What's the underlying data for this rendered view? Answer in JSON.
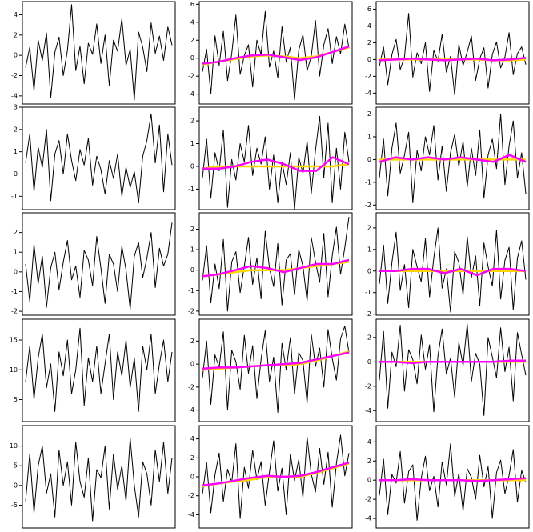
{
  "chart_data": [
    {
      "type": "line",
      "ylim": [
        -4.8,
        5.3
      ],
      "yticks": [
        -4,
        -2,
        0,
        2,
        4
      ],
      "series": [
        {
          "color": "#000000",
          "values": [
            -1.2,
            0.8,
            -3.5,
            1.5,
            -0.5,
            2.2,
            -4.2,
            0.3,
            1.8,
            -2.0,
            0.5,
            5.0,
            -1.5,
            0.9,
            -2.8,
            1.2,
            0.1,
            3.1,
            -0.8,
            2.0,
            -3.0,
            1.5,
            0.4,
            3.6,
            -1.0,
            0.6,
            -4.4,
            2.3,
            0.8,
            -1.6,
            3.2,
            0.2,
            1.9,
            -0.5,
            2.8,
            1.0
          ]
        }
      ]
    },
    {
      "type": "line",
      "ylim": [
        -5.1,
        6.3
      ],
      "yticks": [
        -4,
        -2,
        0,
        2,
        4,
        6
      ],
      "series": [
        {
          "color": "#000000",
          "values": [
            -1.5,
            1.0,
            -4.0,
            2.5,
            -0.8,
            3.0,
            -2.5,
            0.5,
            4.8,
            -1.8,
            0.3,
            1.5,
            -3.2,
            2.0,
            0.4,
            5.2,
            -1.0,
            0.8,
            -2.2,
            3.5,
            -0.4,
            1.2,
            -4.6,
            0.9,
            2.6,
            -1.4,
            0.2,
            4.2,
            -2.0,
            1.5,
            3.3,
            -0.6,
            2.4,
            0.5,
            3.8,
            1.1
          ]
        },
        {
          "color": "#ffd700",
          "values": [
            -0.7,
            -0.4,
            -0.1,
            0.2,
            0.3,
            0.2,
            0.0,
            0.2,
            0.7,
            1.2
          ]
        },
        {
          "color": "#ff00ff",
          "values": [
            -0.6,
            -0.4,
            0.0,
            0.3,
            0.4,
            0.1,
            -0.2,
            0.1,
            0.7,
            1.3
          ]
        }
      ]
    },
    {
      "type": "line",
      "ylim": [
        -5.3,
        6.9
      ],
      "yticks": [
        -4,
        -2,
        0,
        2,
        4,
        6
      ],
      "series": [
        {
          "color": "#000000",
          "values": [
            -0.8,
            1.5,
            -3.0,
            0.6,
            2.4,
            -1.2,
            0.3,
            5.5,
            -2.1,
            0.8,
            -0.5,
            2.0,
            -3.8,
            1.1,
            -0.2,
            3.0,
            -1.5,
            0.4,
            -4.2,
            1.8,
            -0.7,
            0.9,
            2.8,
            -2.5,
            0.1,
            1.4,
            -3.4,
            0.6,
            2.1,
            -1.0,
            0.3,
            3.2,
            -1.8,
            0.7,
            1.5,
            -0.6
          ]
        },
        {
          "color": "#ffd700",
          "values": [
            0,
            0,
            0,
            0,
            0,
            0,
            0,
            -0.1,
            -0.1,
            0
          ]
        },
        {
          "color": "#ff00ff",
          "values": [
            -0.1,
            0,
            0.1,
            0,
            -0.1,
            0,
            0.1,
            -0.1,
            0,
            0.2
          ]
        }
      ]
    },
    {
      "type": "line",
      "ylim": [
        -1.6,
        3.0
      ],
      "yticks": [
        -1,
        0,
        1,
        2,
        3
      ],
      "series": [
        {
          "color": "#000000",
          "values": [
            0.5,
            1.8,
            -0.8,
            1.2,
            0.3,
            2.0,
            -1.2,
            0.9,
            1.5,
            0.0,
            1.8,
            0.6,
            -0.3,
            1.1,
            0.4,
            1.6,
            -0.5,
            0.8,
            0.2,
            -0.9,
            0.6,
            -0.2,
            0.9,
            -1.0,
            0.3,
            -0.6,
            0.1,
            -1.3,
            0.8,
            1.5,
            2.7,
            0.5,
            2.2,
            -0.8,
            1.8,
            0.4
          ]
        }
      ]
    },
    {
      "type": "line",
      "ylim": [
        -1.9,
        2.6
      ],
      "yticks": [
        -1,
        0,
        1,
        2
      ],
      "series": [
        {
          "color": "#000000",
          "values": [
            -0.5,
            1.2,
            -1.4,
            0.6,
            -0.2,
            1.6,
            -1.8,
            0.3,
            -0.6,
            1.0,
            0.2,
            1.8,
            -0.4,
            0.8,
            0.1,
            1.3,
            -1.0,
            0.5,
            -1.6,
            0.2,
            -0.8,
            0.6,
            -1.9,
            0.4,
            -0.3,
            1.1,
            -1.2,
            0.7,
            2.2,
            -0.5,
            1.9,
            -1.6,
            0.8,
            -1.0,
            1.5,
            0.2
          ]
        },
        {
          "color": "#ffd700",
          "values": [
            -0.1,
            0,
            0,
            0,
            0,
            0,
            0,
            0,
            0,
            0.1
          ]
        },
        {
          "color": "#ff00ff",
          "values": [
            -0.1,
            -0.1,
            0,
            0.2,
            0.3,
            0.1,
            -0.2,
            -0.2,
            0.4,
            0.1
          ]
        }
      ]
    },
    {
      "type": "line",
      "ylim": [
        -2.2,
        2.3
      ],
      "yticks": [
        -2,
        -1,
        0,
        1,
        2
      ],
      "series": [
        {
          "color": "#000000",
          "values": [
            -0.8,
            0.9,
            -1.6,
            0.5,
            1.6,
            -0.6,
            0.2,
            1.2,
            -1.9,
            0.4,
            -0.5,
            1.0,
            0.2,
            1.5,
            -0.9,
            0.6,
            -1.4,
            0.3,
            1.1,
            -0.3,
            0.8,
            -1.2,
            0.5,
            -0.7,
            1.3,
            -1.7,
            0.2,
            0.9,
            -0.4,
            2.0,
            -1.1,
            0.6,
            1.7,
            -0.8,
            0.3,
            -1.5
          ]
        },
        {
          "color": "#ffd700",
          "values": [
            0,
            0,
            0,
            0,
            0,
            0,
            0,
            0,
            0,
            0
          ]
        },
        {
          "color": "#ff00ff",
          "values": [
            -0.1,
            0.1,
            0,
            0.1,
            0,
            0.1,
            0,
            -0.1,
            0.2,
            -0.1
          ]
        }
      ]
    },
    {
      "type": "line",
      "ylim": [
        -2.2,
        3.0
      ],
      "yticks": [
        -2,
        -1,
        0,
        1,
        2
      ],
      "series": [
        {
          "color": "#000000",
          "values": [
            0.4,
            -1.5,
            1.4,
            -0.6,
            0.8,
            -1.8,
            0.2,
            1.0,
            -0.9,
            0.5,
            1.6,
            -0.4,
            0.3,
            -1.3,
            1.1,
            0.6,
            -0.7,
            1.8,
            0.2,
            -1.6,
            0.9,
            0.4,
            -1.0,
            1.3,
            0.1,
            -1.9,
            0.8,
            1.5,
            -0.3,
            0.7,
            2.0,
            -0.8,
            1.2,
            0.3,
            0.9,
            2.5
          ]
        }
      ]
    },
    {
      "type": "line",
      "ylim": [
        -2.2,
        2.8
      ],
      "yticks": [
        -2,
        -1,
        0,
        1,
        2
      ],
      "series": [
        {
          "color": "#000000",
          "values": [
            -0.5,
            1.2,
            -1.6,
            0.3,
            -0.9,
            1.5,
            -2.0,
            0.4,
            0.9,
            -1.1,
            0.2,
            1.6,
            -0.7,
            0.6,
            -1.4,
            1.9,
            0.1,
            -0.8,
            1.3,
            -1.7,
            0.5,
            0.8,
            -1.2,
            1.0,
            0.2,
            -1.5,
            1.6,
            0.4,
            -0.6,
            1.8,
            -1.3,
            0.7,
            2.1,
            -0.2,
            1.1,
            2.6
          ]
        },
        {
          "color": "#ffd700",
          "values": [
            -0.3,
            -0.2,
            -0.1,
            0,
            0,
            0,
            0.1,
            0.2,
            0.3,
            0.4
          ]
        },
        {
          "color": "#ff00ff",
          "values": [
            -0.3,
            -0.2,
            0,
            0.2,
            0.1,
            -0.1,
            0.1,
            0.3,
            0.3,
            0.5
          ]
        }
      ]
    },
    {
      "type": "line",
      "ylim": [
        -2.05,
        2.7
      ],
      "yticks": [
        -2,
        -1,
        0,
        1,
        2
      ],
      "series": [
        {
          "color": "#000000",
          "values": [
            -0.6,
            1.2,
            -1.5,
            0.4,
            1.8,
            -0.9,
            0.3,
            -1.7,
            1.0,
            0.2,
            -0.5,
            1.5,
            -1.2,
            0.6,
            2.0,
            -0.8,
            0.1,
            -1.9,
            0.9,
            0.4,
            -1.1,
            1.6,
            -0.3,
            0.7,
            -1.6,
            1.3,
            0.2,
            -0.7,
            1.9,
            -1.3,
            0.5,
            1.1,
            -1.8,
            0.6,
            1.4,
            -0.4
          ]
        },
        {
          "color": "#ffd700",
          "values": [
            0,
            0,
            0,
            0,
            0,
            0,
            0,
            0,
            0,
            0
          ]
        },
        {
          "color": "#ff00ff",
          "values": [
            0,
            0,
            0.1,
            0.1,
            -0.1,
            0.1,
            -0.2,
            0.1,
            0.1,
            0
          ]
        }
      ]
    },
    {
      "type": "line",
      "ylim": [
        1.3,
        18.5
      ],
      "yticks": [
        5,
        10,
        15
      ],
      "series": [
        {
          "color": "#000000",
          "values": [
            8,
            14,
            5,
            12,
            16,
            7,
            11,
            3,
            13,
            9,
            15,
            6,
            10,
            17,
            4,
            12,
            8,
            14,
            6,
            11,
            16,
            5,
            13,
            9,
            15,
            7,
            12,
            3,
            14,
            10,
            16,
            6,
            11,
            15,
            8,
            13
          ]
        }
      ]
    },
    {
      "type": "line",
      "ylim": [
        -5.0,
        3.9
      ],
      "yticks": [
        -4,
        -2,
        0,
        2
      ],
      "series": [
        {
          "color": "#000000",
          "values": [
            -1.2,
            2.0,
            -3.5,
            0.8,
            -0.3,
            2.8,
            -4.0,
            1.2,
            0.2,
            -2.2,
            2.5,
            -0.8,
            1.6,
            -3.0,
            0.4,
            2.9,
            -1.5,
            0.6,
            -4.2,
            1.8,
            -0.5,
            2.3,
            -2.6,
            1.0,
            0.3,
            -3.4,
            2.6,
            -0.2,
            1.4,
            -2.0,
            3.0,
            0.5,
            -1.4,
            2.2,
            3.3,
            1.0
          ]
        },
        {
          "color": "#ffd700",
          "values": [
            -0.5,
            -0.4,
            -0.3,
            -0.2,
            -0.1,
            -0.1,
            0,
            0.3,
            0.7,
            1.1
          ]
        },
        {
          "color": "#ff00ff",
          "values": [
            -0.4,
            -0.3,
            -0.3,
            -0.2,
            -0.1,
            0,
            0.1,
            0.4,
            0.7,
            1.0
          ]
        }
      ]
    },
    {
      "type": "line",
      "ylim": [
        -4.9,
        3.5
      ],
      "yticks": [
        -4,
        -2,
        0,
        2
      ],
      "series": [
        {
          "color": "#000000",
          "values": [
            -1.5,
            2.5,
            -3.8,
            0.8,
            -0.4,
            3.0,
            -2.4,
            1.0,
            0.2,
            -1.8,
            2.2,
            -0.6,
            1.4,
            -4.1,
            0.5,
            2.7,
            -1.0,
            0.3,
            -2.9,
            1.6,
            -0.3,
            3.1,
            -1.6,
            0.7,
            -0.2,
            -4.4,
            2.0,
            0.4,
            -1.3,
            2.8,
            -0.8,
            1.2,
            -3.2,
            2.4,
            0.6,
            -1.1
          ]
        },
        {
          "color": "#ffd700",
          "values": [
            0,
            0,
            0,
            0,
            0,
            0,
            0,
            0,
            0,
            0
          ]
        },
        {
          "color": "#ff00ff",
          "values": [
            0,
            0,
            -0.1,
            0,
            0,
            0,
            0,
            0,
            0.1,
            0.1
          ]
        }
      ]
    },
    {
      "type": "line",
      "ylim": [
        -10.8,
        15.2
      ],
      "yticks": [
        -5,
        0,
        5,
        10
      ],
      "series": [
        {
          "color": "#000000",
          "values": [
            -4,
            8,
            -7,
            5,
            10,
            -2,
            3,
            -8,
            9,
            0,
            6,
            -5,
            11,
            1,
            -3,
            7,
            -9,
            4,
            2,
            10,
            -6,
            8,
            -1,
            5,
            -4,
            12,
            0,
            -8,
            6,
            3,
            -5,
            9,
            1,
            11,
            -2,
            7
          ]
        }
      ]
    },
    {
      "type": "line",
      "ylim": [
        -5.4,
        5.4
      ],
      "yticks": [
        -4,
        -2,
        0,
        2,
        4
      ],
      "series": [
        {
          "color": "#000000",
          "values": [
            -1.8,
            1.5,
            -3.8,
            0.2,
            2.5,
            -2.6,
            0.8,
            -0.6,
            3.5,
            -4.4,
            1.0,
            -1.2,
            2.8,
            -0.3,
            1.6,
            -3.0,
            0.5,
            3.8,
            -1.5,
            0.9,
            -4.0,
            2.4,
            -0.4,
            1.8,
            -2.2,
            4.2,
            0.3,
            -1.6,
            3.0,
            -0.8,
            2.6,
            -3.2,
            1.4,
            4.4,
            0.1,
            2.5
          ]
        },
        {
          "color": "#ffd700",
          "values": [
            -1.0,
            -0.7,
            -0.5,
            -0.3,
            0,
            0,
            0,
            0.4,
            0.9,
            1.4
          ]
        },
        {
          "color": "#ff00ff",
          "values": [
            -0.9,
            -0.7,
            -0.4,
            -0.1,
            0.1,
            0,
            0.1,
            0.5,
            1.0,
            1.5
          ]
        }
      ]
    },
    {
      "type": "line",
      "ylim": [
        -5.0,
        5.7
      ],
      "yticks": [
        -4,
        -2,
        0,
        2,
        4
      ],
      "series": [
        {
          "color": "#000000",
          "values": [
            -1.6,
            2.2,
            -3.6,
            0.6,
            -0.3,
            3.0,
            -2.4,
            0.9,
            1.6,
            -4.2,
            0.2,
            2.5,
            -1.1,
            0.4,
            -2.8,
            1.9,
            -0.5,
            3.8,
            -1.7,
            0.7,
            -3.2,
            1.2,
            0.3,
            -2.0,
            2.6,
            -0.7,
            1.4,
            -4.0,
            0.8,
            2.1,
            -1.4,
            0.5,
            3.2,
            -2.3,
            1.0,
            -0.2
          ]
        },
        {
          "color": "#ffd700",
          "values": [
            0,
            0,
            0,
            0,
            0,
            0,
            0,
            0,
            0,
            0
          ]
        },
        {
          "color": "#ff00ff",
          "values": [
            0,
            0,
            0.1,
            0,
            0,
            0,
            -0.1,
            0,
            0.1,
            0.2
          ]
        }
      ]
    }
  ]
}
